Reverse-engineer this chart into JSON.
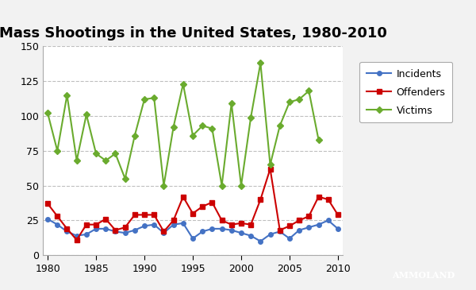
{
  "title": "Mass Shootings in the United States, 1980-2010",
  "years": [
    1980,
    1981,
    1982,
    1983,
    1984,
    1985,
    1986,
    1987,
    1988,
    1989,
    1990,
    1991,
    1992,
    1993,
    1994,
    1995,
    1996,
    1997,
    1998,
    1999,
    2000,
    2001,
    2002,
    2003,
    2004,
    2005,
    2006,
    2007,
    2008,
    2009,
    2010
  ],
  "incidents": [
    26,
    22,
    17,
    14,
    15,
    19,
    19,
    17,
    16,
    18,
    21,
    22,
    16,
    22,
    23,
    12,
    17,
    19,
    19,
    18,
    16,
    14,
    10,
    15,
    17,
    12,
    18,
    20,
    22,
    25,
    19
  ],
  "offenders": [
    37,
    28,
    19,
    11,
    22,
    22,
    26,
    18,
    20,
    29,
    29,
    29,
    17,
    25,
    42,
    30,
    35,
    38,
    25,
    22,
    23,
    22,
    40,
    62,
    18,
    21,
    25,
    28,
    42,
    40,
    29
  ],
  "victims": [
    102,
    75,
    115,
    68,
    101,
    73,
    68,
    73,
    55,
    86,
    112,
    113,
    50,
    92,
    123,
    86,
    93,
    91,
    50,
    109,
    50,
    99,
    138,
    65,
    93,
    110,
    112,
    118,
    83
  ],
  "victims_years_count": 29,
  "incidents_color": "#4472C4",
  "offenders_color": "#CC0000",
  "victims_color": "#6AAB2E",
  "bg_color": "#F2F2F2",
  "plot_bg_color": "#FFFFFF",
  "grid_color": "#BFBFBF",
  "ylim": [
    0,
    150
  ],
  "yticks": [
    0,
    25,
    50,
    75,
    100,
    125,
    150
  ],
  "xticks": [
    1980,
    1985,
    1990,
    1995,
    2000,
    2005,
    2010
  ],
  "title_fontsize": 13,
  "legend_fontsize": 9,
  "tick_fontsize": 9,
  "marker_size": 4,
  "line_width": 1.5
}
